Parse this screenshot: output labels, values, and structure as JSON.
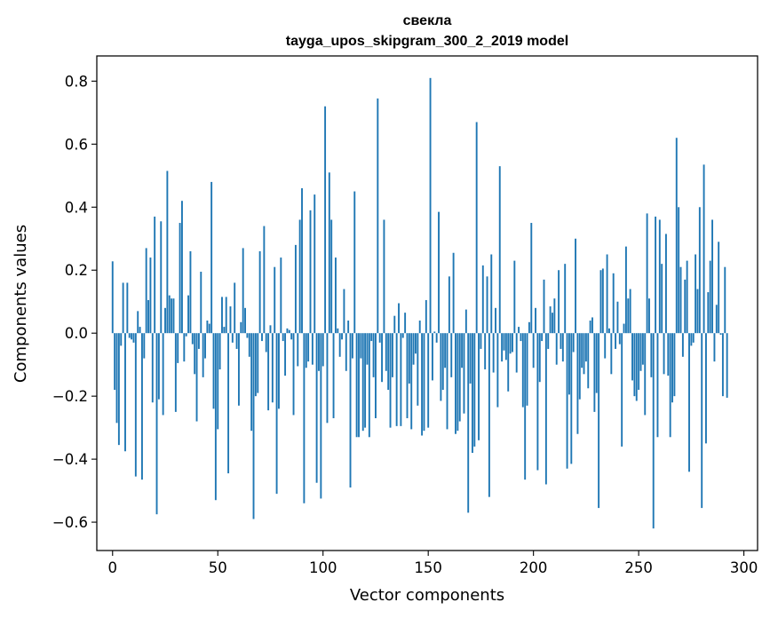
{
  "chart_data": {
    "type": "bar",
    "title_line1": "свекла",
    "title_line2": "tayga_upos_skipgram_300_2_2019 model",
    "xlabel": "Vector components",
    "ylabel": "Components values",
    "xlim": [
      -7.5,
      306.5
    ],
    "ylim": [
      -0.69,
      0.88
    ],
    "xticks": [
      0,
      50,
      100,
      150,
      200,
      250,
      300
    ],
    "xtick_labels": [
      "0",
      "50",
      "100",
      "150",
      "200",
      "250",
      "300"
    ],
    "yticks": [
      -0.6,
      -0.4,
      -0.2,
      0.0,
      0.2,
      0.4,
      0.6,
      0.8
    ],
    "ytick_labels": [
      "−0.6",
      "−0.4",
      "−0.2",
      "0.0",
      "0.2",
      "0.4",
      "0.6",
      "0.8"
    ],
    "bar_color": "#1f77b4",
    "grid": false,
    "values": [
      0.228,
      -0.18,
      -0.285,
      -0.355,
      -0.04,
      0.16,
      -0.375,
      0.16,
      -0.015,
      -0.02,
      -0.03,
      -0.455,
      0.07,
      0.02,
      -0.465,
      -0.08,
      0.27,
      0.105,
      0.24,
      -0.22,
      0.37,
      -0.575,
      -0.21,
      0.355,
      -0.26,
      0.08,
      0.515,
      0.12,
      0.11,
      0.11,
      -0.25,
      -0.095,
      0.35,
      0.42,
      -0.09,
      -0.01,
      0.12,
      0.26,
      -0.035,
      -0.13,
      -0.28,
      -0.05,
      0.195,
      -0.14,
      -0.08,
      0.04,
      0.03,
      0.48,
      -0.24,
      -0.53,
      -0.305,
      -0.115,
      0.115,
      0.02,
      0.115,
      -0.445,
      0.085,
      -0.03,
      0.16,
      -0.05,
      -0.23,
      0.035,
      0.27,
      0.08,
      -0.015,
      -0.075,
      -0.31,
      -0.59,
      -0.2,
      -0.19,
      0.26,
      -0.025,
      0.34,
      -0.06,
      -0.245,
      0.025,
      -0.22,
      0.21,
      -0.51,
      -0.24,
      0.24,
      -0.025,
      -0.135,
      0.015,
      0.01,
      -0.02,
      -0.26,
      0.28,
      -0.105,
      0.36,
      0.46,
      -0.54,
      -0.11,
      -0.09,
      0.39,
      -0.1,
      0.44,
      -0.475,
      -0.12,
      -0.525,
      -0.105,
      0.72,
      -0.285,
      0.51,
      0.36,
      -0.27,
      0.24,
      0.015,
      -0.075,
      -0.02,
      0.14,
      -0.12,
      0.04,
      -0.49,
      -0.08,
      0.45,
      -0.33,
      -0.33,
      -0.08,
      -0.31,
      -0.3,
      -0.1,
      -0.33,
      -0.025,
      -0.14,
      -0.27,
      0.745,
      -0.03,
      -0.155,
      0.36,
      -0.12,
      -0.18,
      -0.3,
      -0.14,
      0.055,
      -0.295,
      0.095,
      -0.295,
      -0.015,
      0.065,
      -0.27,
      -0.16,
      -0.305,
      -0.1,
      -0.065,
      -0.23,
      0.04,
      -0.325,
      -0.31,
      0.105,
      -0.3,
      0.81,
      -0.15,
      0.005,
      -0.03,
      0.385,
      -0.215,
      -0.18,
      -0.11,
      -0.305,
      0.18,
      -0.14,
      0.255,
      -0.32,
      -0.31,
      -0.28,
      -0.11,
      -0.255,
      0.075,
      -0.57,
      -0.16,
      -0.38,
      -0.36,
      0.67,
      -0.34,
      -0.05,
      0.215,
      -0.115,
      0.18,
      -0.52,
      0.25,
      -0.125,
      0.08,
      -0.235,
      0.53,
      -0.09,
      -0.055,
      -0.085,
      -0.185,
      -0.065,
      -0.06,
      0.23,
      -0.125,
      0.02,
      -0.025,
      -0.235,
      -0.465,
      -0.23,
      0.035,
      0.35,
      -0.11,
      0.08,
      -0.435,
      -0.155,
      -0.025,
      0.17,
      -0.48,
      -0.05,
      0.085,
      0.065,
      0.11,
      -0.1,
      0.2,
      -0.05,
      -0.09,
      0.22,
      -0.43,
      -0.195,
      -0.415,
      -0.06,
      0.3,
      -0.32,
      -0.21,
      -0.11,
      -0.13,
      -0.09,
      -0.175,
      0.04,
      0.05,
      -0.25,
      -0.19,
      -0.555,
      0.2,
      0.205,
      -0.08,
      0.25,
      0.015,
      -0.13,
      0.19,
      -0.05,
      0.1,
      -0.035,
      -0.36,
      0.03,
      0.275,
      0.11,
      0.14,
      -0.15,
      -0.2,
      -0.215,
      -0.18,
      -0.12,
      -0.1,
      -0.26,
      0.38,
      0.11,
      -0.14,
      -0.62,
      0.37,
      -0.33,
      0.36,
      0.22,
      -0.13,
      0.315,
      -0.135,
      -0.33,
      -0.22,
      -0.2,
      0.62,
      0.4,
      0.21,
      -0.075,
      0.17,
      0.23,
      -0.44,
      -0.04,
      -0.03,
      0.25,
      0.14,
      0.4,
      -0.555,
      0.535,
      -0.35,
      0.13,
      0.23,
      0.36,
      -0.09,
      0.09,
      0.29,
      -0.005,
      -0.2,
      0.21,
      -0.205
    ]
  }
}
